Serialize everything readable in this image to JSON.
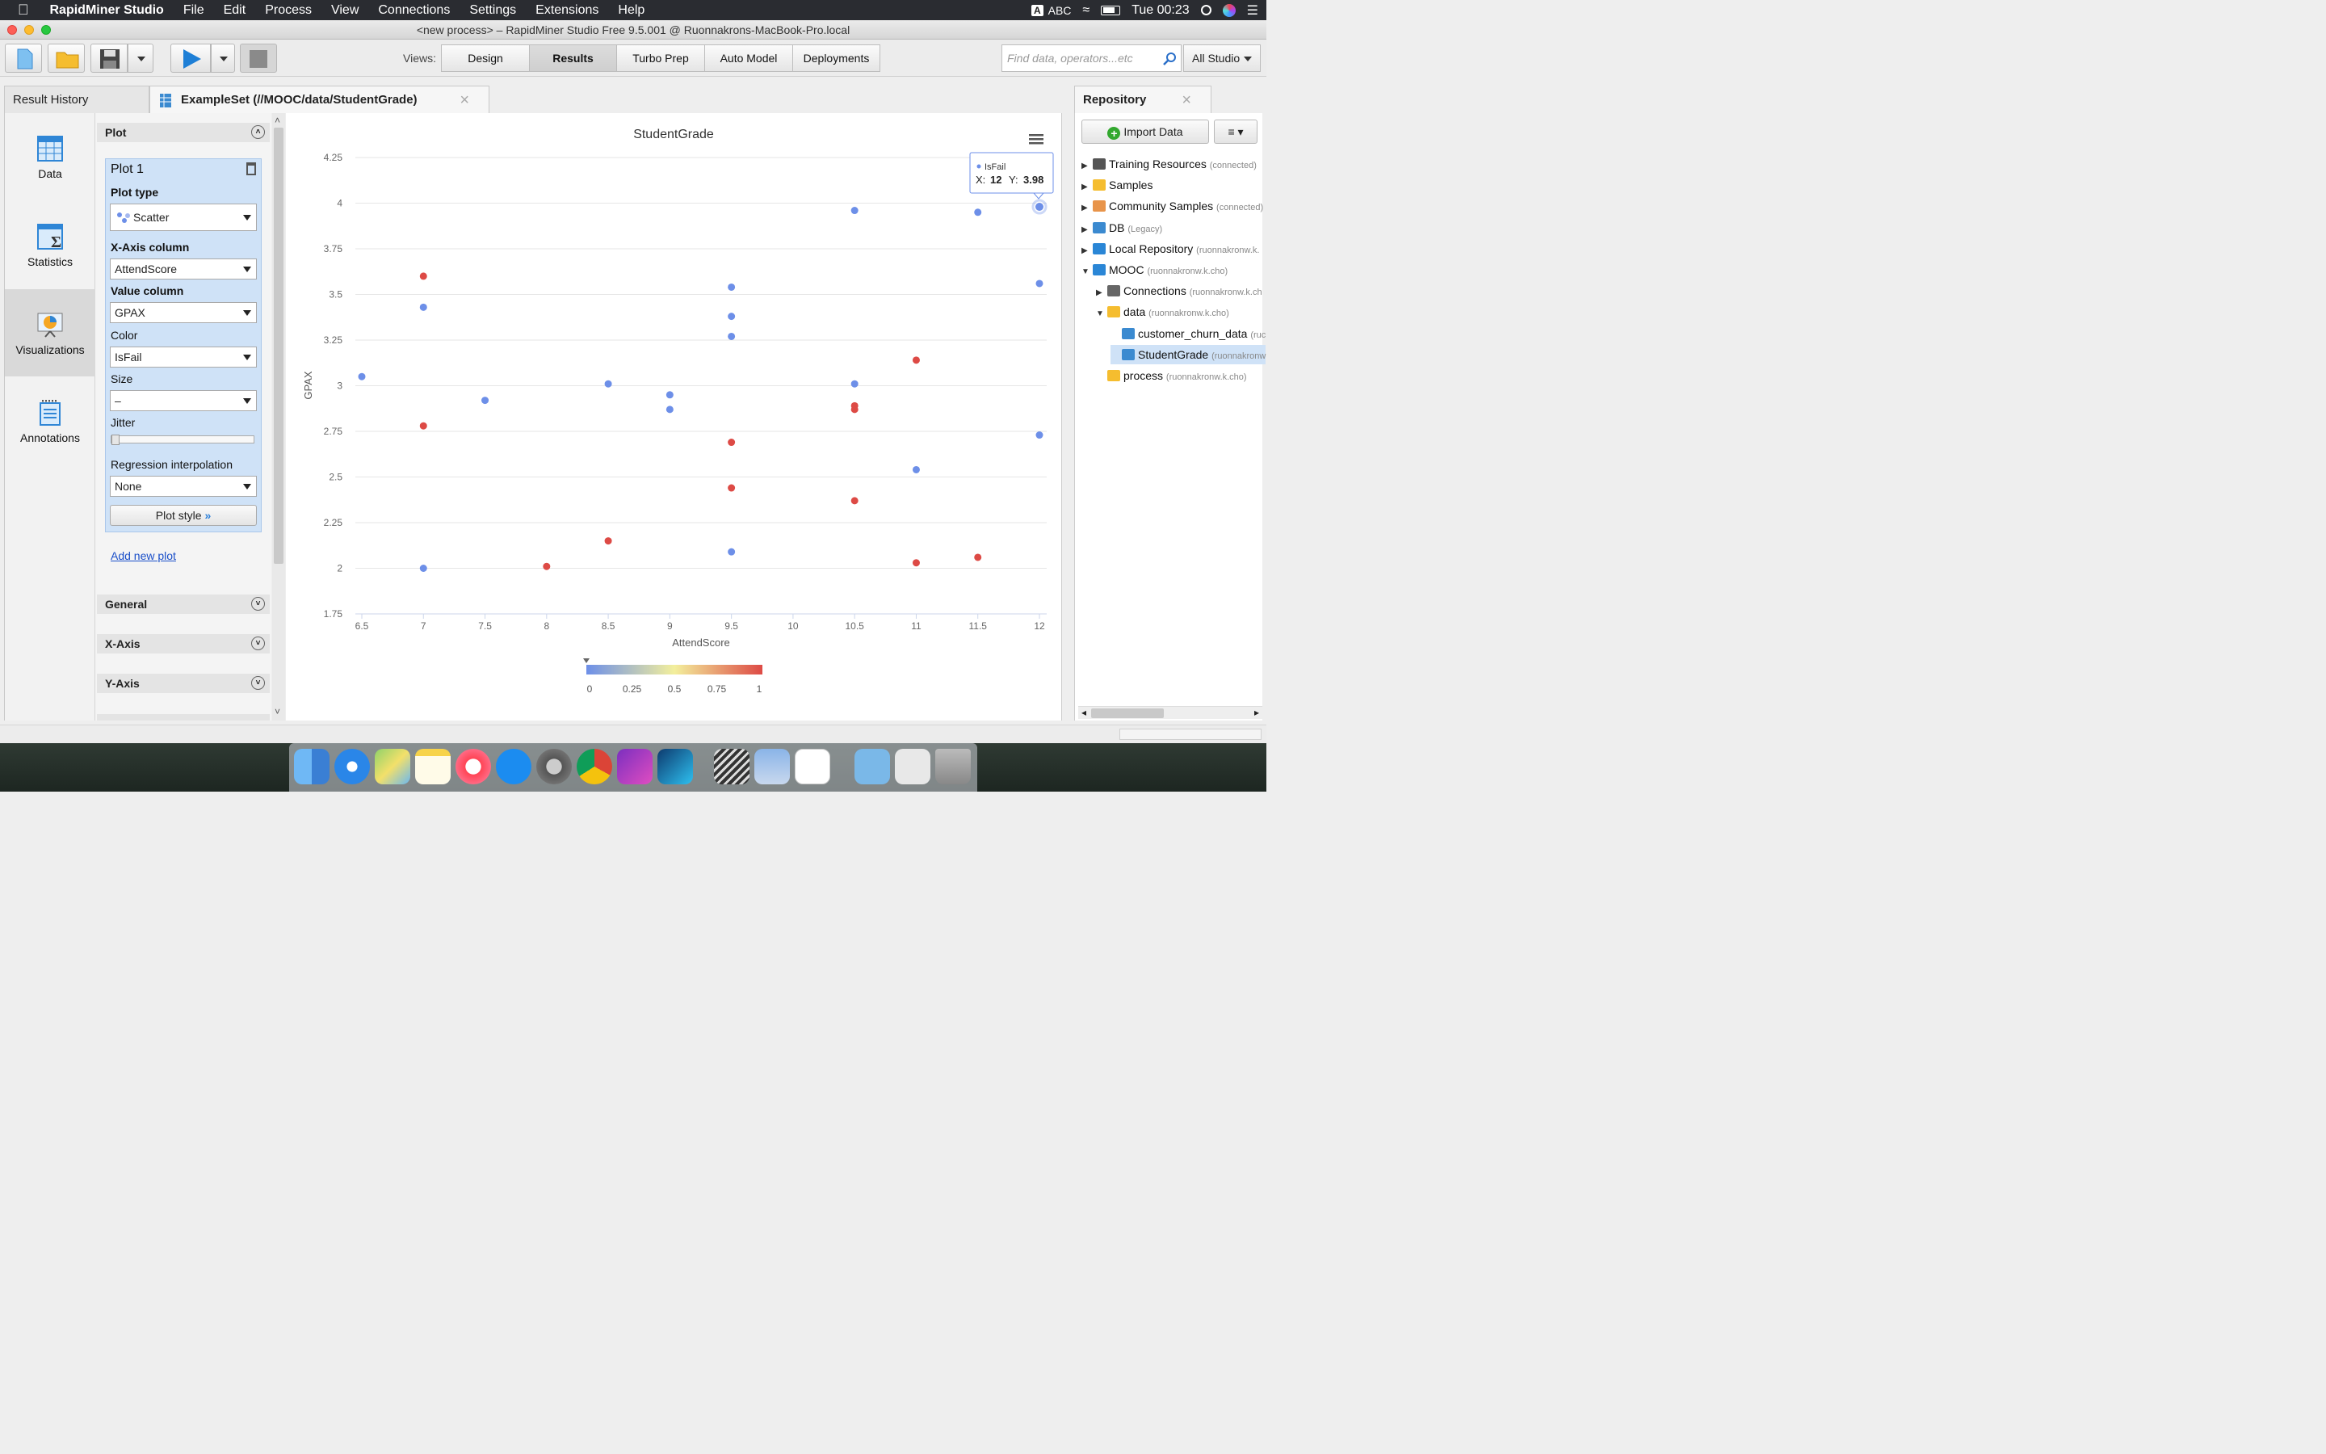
{
  "menubar": {
    "app": "RapidMiner Studio",
    "items": [
      "File",
      "Edit",
      "Process",
      "View",
      "Connections",
      "Settings",
      "Extensions",
      "Help"
    ],
    "input_badge": "A",
    "input_source": "ABC",
    "clock": "Tue 00:23"
  },
  "window": {
    "title": "<new process> – RapidMiner Studio Free 9.5.001 @ Ruonnakrons-MacBook-Pro.local"
  },
  "toolbar": {
    "views_label": "Views:",
    "views": [
      "Design",
      "Results",
      "Turbo Prep",
      "Auto Model",
      "Deployments"
    ],
    "active_view": "Results",
    "search_placeholder": "Find data, operators...etc",
    "scope": "All Studio"
  },
  "tabs": {
    "history": "Result History",
    "exampleset": "ExampleSet (//MOOC/data/StudentGrade)",
    "repository": "Repository"
  },
  "leftnav": [
    "Data",
    "Statistics",
    "Visualizations",
    "Annotations"
  ],
  "config": {
    "plot_header": "Plot",
    "plot_title": "Plot 1",
    "plot_type_label": "Plot type",
    "plot_type": "Scatter",
    "x_label": "X-Axis column",
    "x_value": "AttendScore",
    "value_label": "Value column",
    "value_value": "GPAX",
    "color_label": "Color",
    "color_value": "IsFail",
    "size_label": "Size",
    "size_value": "–",
    "jitter_label": "Jitter",
    "regression_label": "Regression interpolation",
    "regression_value": "None",
    "plot_style": "Plot style",
    "add_plot": "Add new plot",
    "sections": [
      "General",
      "X-Axis",
      "Y-Axis"
    ]
  },
  "colors": {
    "low": "#6d8fe8",
    "mid": "#f3ef9c",
    "high": "#dd4a45",
    "accent": "#3b7ddd"
  },
  "chart_data": {
    "type": "scatter",
    "title": "StudentGrade",
    "xlabel": "AttendScore",
    "ylabel": "GPAX",
    "xlim": [
      6.5,
      12
    ],
    "ylim": [
      1.75,
      4.25
    ],
    "xticks": [
      "6.5",
      "7",
      "7.5",
      "8",
      "8.5",
      "9",
      "9.5",
      "10",
      "10.5",
      "11",
      "11.5",
      "12"
    ],
    "yticks": [
      "1.75",
      "2",
      "2.25",
      "2.5",
      "2.75",
      "3",
      "3.25",
      "3.5",
      "3.75",
      "4",
      "4.25"
    ],
    "grid": true,
    "color_scale": {
      "column": "IsFail",
      "ticks": [
        "0",
        "0.25",
        "0.5",
        "0.75",
        "1"
      ]
    },
    "points": [
      {
        "x": 6.5,
        "y": 3.05,
        "c": 0
      },
      {
        "x": 7,
        "y": 3.6,
        "c": 1
      },
      {
        "x": 7,
        "y": 3.43,
        "c": 0
      },
      {
        "x": 7,
        "y": 2.78,
        "c": 1
      },
      {
        "x": 7,
        "y": 2.0,
        "c": 0
      },
      {
        "x": 7.5,
        "y": 2.92,
        "c": 0
      },
      {
        "x": 8,
        "y": 2.01,
        "c": 1
      },
      {
        "x": 8.5,
        "y": 3.01,
        "c": 0
      },
      {
        "x": 8.5,
        "y": 2.15,
        "c": 1
      },
      {
        "x": 9,
        "y": 2.95,
        "c": 0
      },
      {
        "x": 9,
        "y": 2.87,
        "c": 0
      },
      {
        "x": 9.5,
        "y": 3.54,
        "c": 0
      },
      {
        "x": 9.5,
        "y": 3.38,
        "c": 0
      },
      {
        "x": 9.5,
        "y": 3.27,
        "c": 0
      },
      {
        "x": 9.5,
        "y": 2.69,
        "c": 1
      },
      {
        "x": 9.5,
        "y": 2.44,
        "c": 1
      },
      {
        "x": 9.5,
        "y": 2.09,
        "c": 0
      },
      {
        "x": 10.5,
        "y": 3.96,
        "c": 0
      },
      {
        "x": 10.5,
        "y": 3.01,
        "c": 0
      },
      {
        "x": 10.5,
        "y": 2.89,
        "c": 1
      },
      {
        "x": 10.5,
        "y": 2.87,
        "c": 1
      },
      {
        "x": 10.5,
        "y": 2.37,
        "c": 1
      },
      {
        "x": 11,
        "y": 3.14,
        "c": 1
      },
      {
        "x": 11,
        "y": 2.54,
        "c": 0
      },
      {
        "x": 11,
        "y": 2.03,
        "c": 1
      },
      {
        "x": 11.5,
        "y": 3.95,
        "c": 0
      },
      {
        "x": 11.5,
        "y": 2.06,
        "c": 1
      },
      {
        "x": 12,
        "y": 3.98,
        "c": 0
      },
      {
        "x": 12,
        "y": 3.56,
        "c": 0
      },
      {
        "x": 12,
        "y": 2.73,
        "c": 0
      }
    ],
    "tooltip": {
      "series": "IsFail",
      "x_label": "X:",
      "x": "12",
      "y_label": "Y:",
      "y": "3.98"
    }
  },
  "repository": {
    "import": "Import Data",
    "nodes": [
      {
        "label": "Training Resources",
        "sub": "(connected)"
      },
      {
        "label": "Samples",
        "sub": ""
      },
      {
        "label": "Community Samples",
        "sub": "(connected)"
      },
      {
        "label": "DB",
        "sub": "(Legacy)"
      },
      {
        "label": "Local Repository",
        "sub": "(ruonnakronw.k."
      },
      {
        "label": "MOOC",
        "sub": "(ruonnakronw.k.cho)"
      },
      {
        "label": "Connections",
        "sub": "(ruonnakronw.k.ch"
      },
      {
        "label": "data",
        "sub": "(ruonnakronw.k.cho)"
      },
      {
        "label": "customer_churn_data",
        "sub": "(ruc"
      },
      {
        "label": "StudentGrade",
        "sub": "(ruonnakronw"
      },
      {
        "label": "process",
        "sub": "(ruonnakronw.k.cho)"
      }
    ]
  }
}
